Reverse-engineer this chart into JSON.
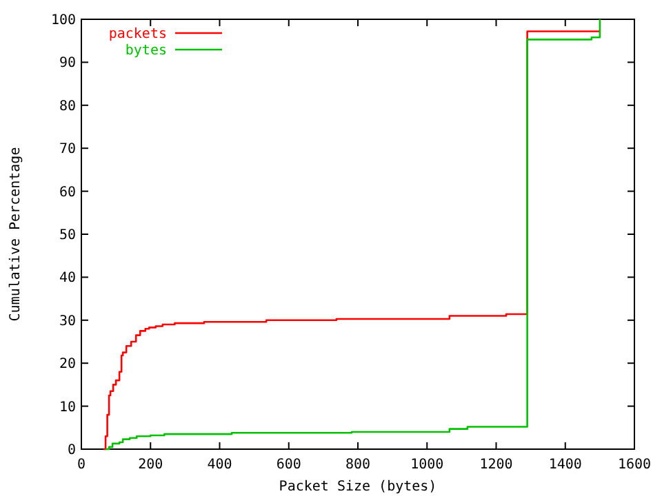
{
  "chart_data": {
    "type": "step",
    "xlabel": "Packet Size (bytes)",
    "ylabel": "Cumulative Percentage",
    "xlim": [
      0,
      1600
    ],
    "ylim": [
      0,
      100
    ],
    "xticks": [
      0,
      200,
      400,
      600,
      800,
      1000,
      1200,
      1400,
      1600
    ],
    "yticks": [
      0,
      10,
      20,
      30,
      40,
      50,
      60,
      70,
      80,
      90,
      100
    ],
    "legend": "top left",
    "grid": false,
    "marker": "none",
    "line_style": "solid",
    "series": [
      {
        "name": "packets",
        "color": "#ff0000",
        "x": [
          64,
          70,
          75,
          80,
          84,
          92,
          100,
          110,
          116,
          120,
          130,
          144,
          158,
          170,
          185,
          196,
          215,
          235,
          270,
          355,
          535,
          738,
          1065,
          1229,
          1290,
          1500
        ],
        "values": [
          0,
          3,
          8,
          12.5,
          13.5,
          15,
          16,
          18,
          21.8,
          22.5,
          24,
          25,
          26.5,
          27.5,
          28,
          28.3,
          28.6,
          29,
          29.3,
          29.6,
          30,
          30.3,
          31,
          31.4,
          97.2,
          97.2
        ]
      },
      {
        "name": "bytes",
        "color": "#00c000",
        "x": [
          70,
          80,
          90,
          110,
          120,
          140,
          160,
          200,
          240,
          435,
          782,
          1065,
          1117,
          1290,
          1476,
          1500
        ],
        "values": [
          0,
          0.5,
          1.3,
          1.6,
          2.3,
          2.6,
          3,
          3.2,
          3.5,
          3.8,
          4,
          4.7,
          5.2,
          95.3,
          95.8,
          100
        ]
      }
    ]
  }
}
